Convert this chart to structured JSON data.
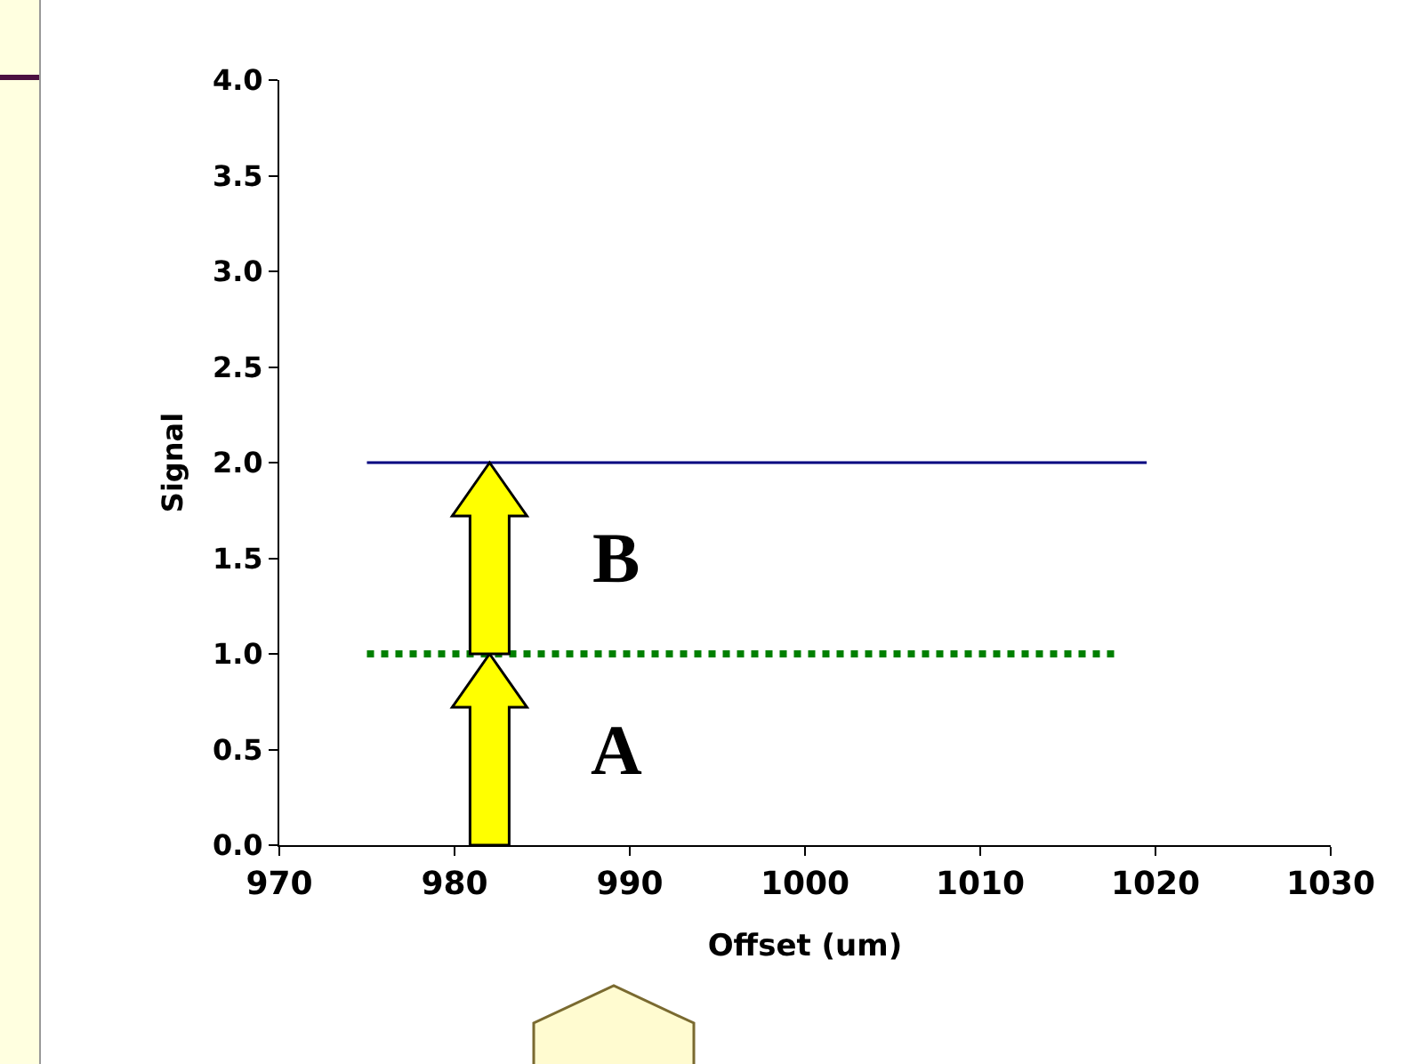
{
  "chart_data": {
    "type": "line",
    "xlabel": "Offset (um)",
    "ylabel": "Signal",
    "xlim": [
      970,
      1030
    ],
    "xticks": [
      970,
      980,
      990,
      1000,
      1010,
      1020,
      1030
    ],
    "ylim": [
      0,
      4
    ],
    "yticks": [
      {
        "value": 0,
        "label": "0.0"
      },
      {
        "value": 0.5,
        "label": "0.5"
      },
      {
        "value": 1,
        "label": "1.0"
      },
      {
        "value": 1.5,
        "label": "1.5"
      },
      {
        "value": 2,
        "label": "2.0"
      },
      {
        "value": 2.5,
        "label": "2.5"
      },
      {
        "value": 3,
        "label": "3.0"
      },
      {
        "value": 3.5,
        "label": "3.5"
      },
      {
        "value": 4,
        "label": "4.0"
      }
    ],
    "grid": false,
    "marker": "none",
    "series": [
      {
        "color": "#000080",
        "line_style": "solid",
        "x": [
          975,
          1019.5
        ],
        "values": [
          2.0,
          2.0
        ]
      },
      {
        "color": "#008000",
        "line_style": "dotted",
        "x": [
          975,
          1018
        ],
        "values": [
          1.0,
          1.0
        ]
      }
    ],
    "annotations": [
      "B",
      "A"
    ]
  }
}
